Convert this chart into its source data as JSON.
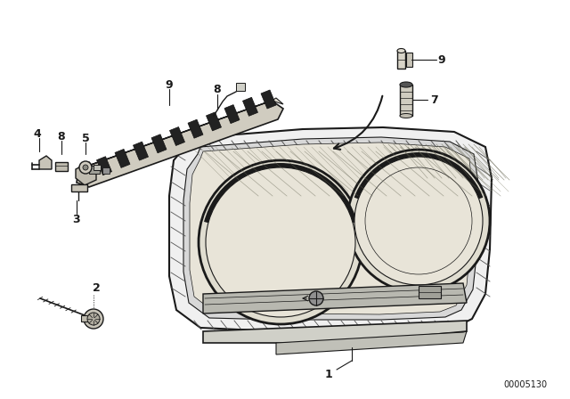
{
  "background_color": "#ffffff",
  "part_number": "00005130",
  "line_color": "#1a1a1a",
  "hatch_color": "#333333",
  "gray_fill": "#c8c8c8",
  "light_gray": "#e8e8e8"
}
